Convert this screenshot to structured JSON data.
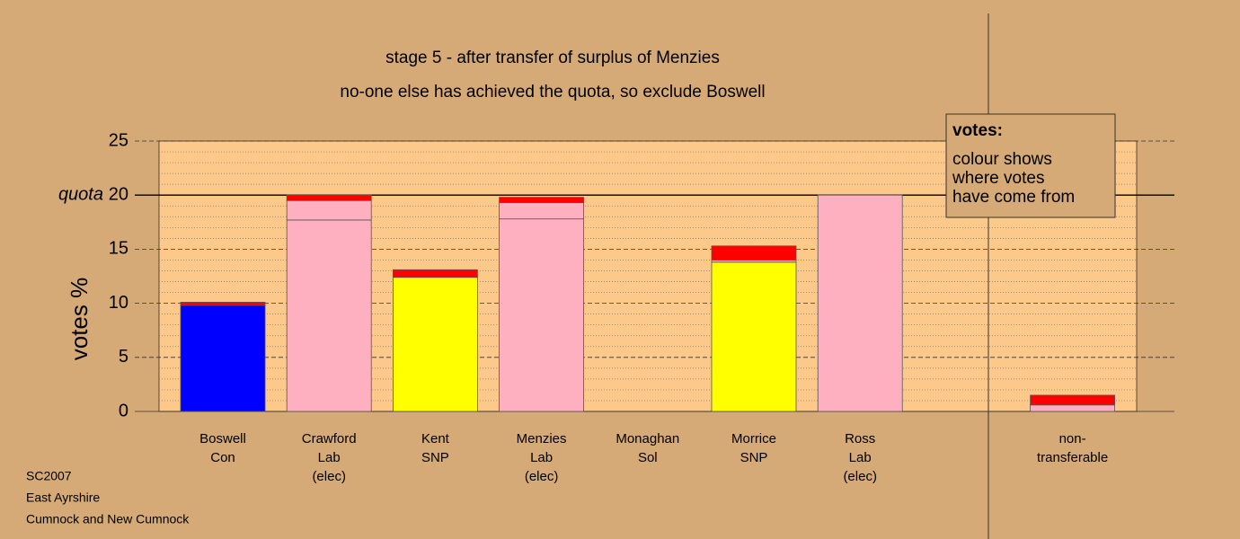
{
  "chart_data": {
    "type": "stacked_bar",
    "title": "stage 5 - after transfer of surplus of Menzies",
    "subtitle": "no-one else has achieved the quota, so exclude Boswell",
    "y_label": "votes %",
    "categories": [
      [
        "Boswell",
        "Con"
      ],
      [
        "Crawford",
        "Lab",
        "(elec)"
      ],
      [
        "Kent",
        "SNP"
      ],
      [
        "Menzies",
        "Lab",
        "(elec)"
      ],
      [
        "Monaghan",
        "Sol"
      ],
      [
        "Morrice",
        "SNP"
      ],
      [
        "Ross",
        "Lab",
        "(elec)"
      ],
      null,
      [
        "non-",
        "transferable"
      ]
    ],
    "series": [
      {
        "colors": [
          "#0000ff",
          "#ffb0c0",
          "#ffff00",
          "#ffb0c0",
          "#ffb0c0",
          "#ffff00",
          "#ffb0c0",
          null,
          "#ffb0c0"
        ],
        "values": [
          9.8,
          17.7,
          12.4,
          17.8,
          0,
          13.8,
          20,
          null,
          0.6
        ]
      },
      {
        "color": "#ffb0c0",
        "values": [
          0,
          1.8,
          0,
          1.5,
          0,
          0.2,
          0,
          null,
          0
        ]
      },
      {
        "color": "#ff0000",
        "values": [
          0.3,
          0.5,
          0.7,
          0.5,
          0,
          1.3,
          0,
          null,
          0.9
        ]
      }
    ],
    "ylim": [
      0,
      25
    ],
    "yticks": [
      0,
      5,
      10,
      15,
      20,
      25
    ],
    "minor_yticks": [
      1,
      2,
      3,
      4,
      6,
      7,
      8,
      9,
      11,
      12,
      13,
      14,
      16,
      17,
      18,
      19,
      21,
      22,
      23,
      24
    ],
    "quota": {
      "label": "quota",
      "value": 20
    },
    "legend_note": {
      "heading": "votes:",
      "lines": [
        "colour shows",
        "where votes",
        "have come from"
      ]
    },
    "footer": [
      "SC2007",
      "East Ayrshire",
      "Cumnock and New Cumnock"
    ]
  }
}
